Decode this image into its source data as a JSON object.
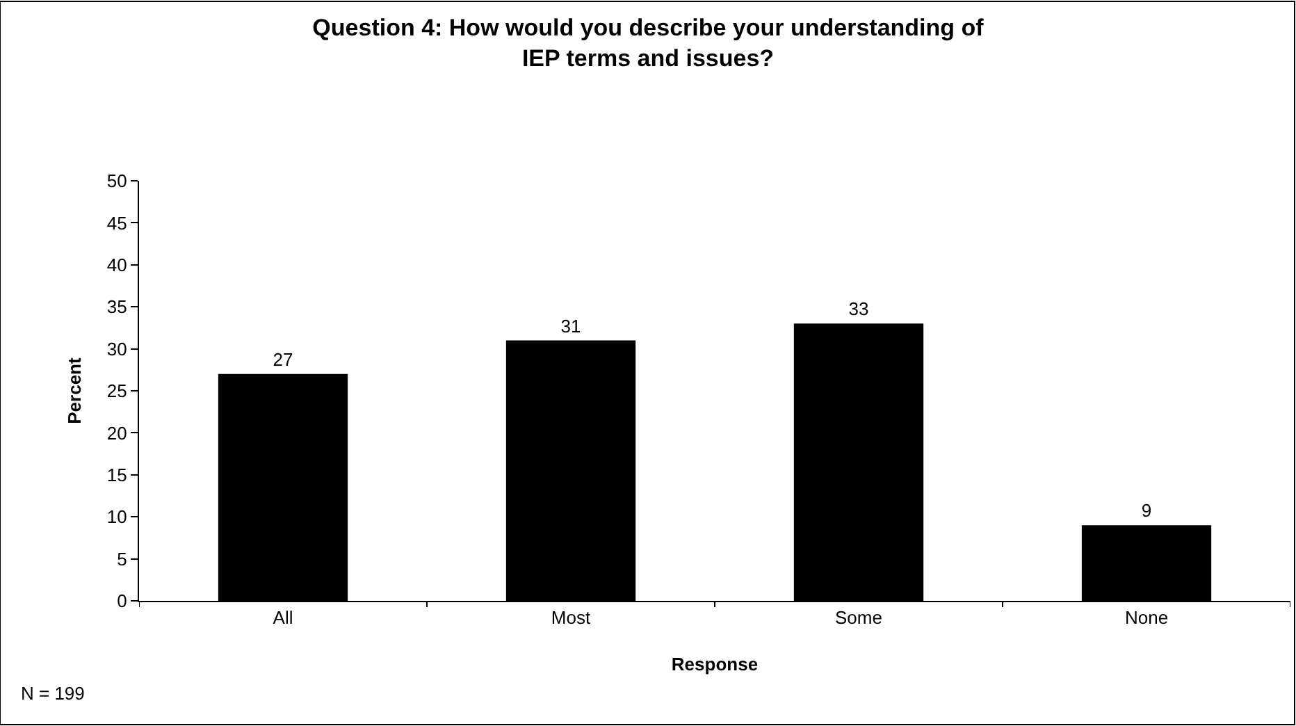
{
  "chart_data": {
    "type": "bar",
    "title": "Question 4: How would you describe your understanding of\nIEP terms and issues?",
    "xlabel": "Response",
    "ylabel": "Percent",
    "categories": [
      "All",
      "Most",
      "Some",
      "None"
    ],
    "values": [
      27,
      31,
      33,
      9
    ],
    "color": "#000000",
    "ylim": [
      0,
      50
    ],
    "yticks": [
      0,
      5,
      10,
      15,
      20,
      25,
      30,
      35,
      40,
      45,
      50
    ],
    "data_labels": true,
    "annotations": [
      "N = 199"
    ]
  }
}
